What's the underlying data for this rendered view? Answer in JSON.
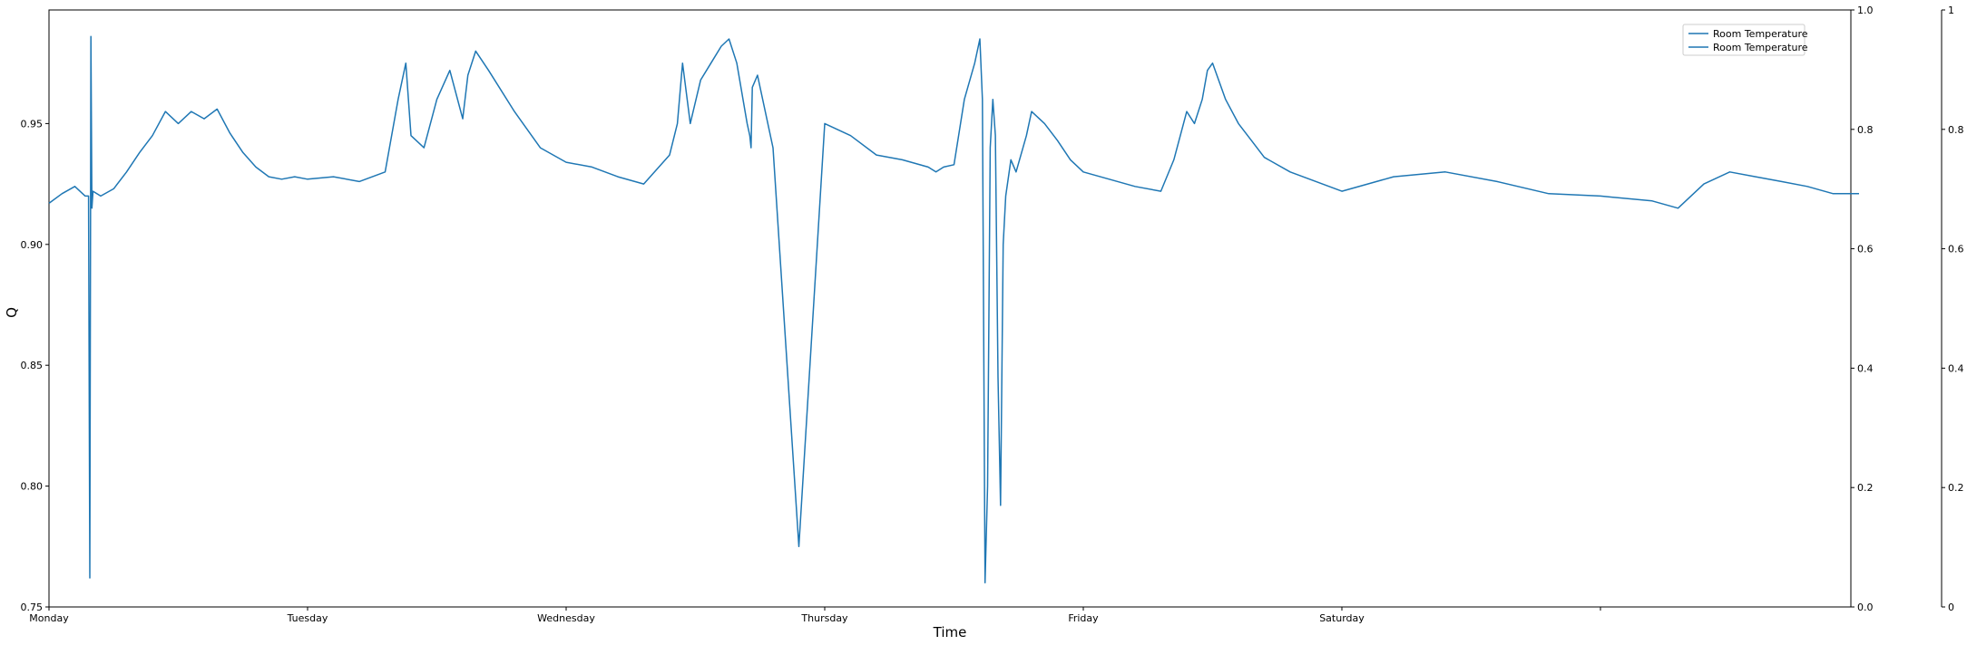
{
  "chart_data": {
    "type": "line",
    "title": "",
    "xlabel": "Time",
    "ylabel": "Q",
    "x_ticks": [
      "Monday",
      "Tuesday",
      "Wednesday",
      "Thursday",
      "Friday",
      "Saturday",
      ""
    ],
    "x_tick_positions_days": [
      0,
      1,
      2,
      3,
      4,
      5,
      6
    ],
    "xlim_days": [
      0,
      7.0
    ],
    "ylim": [
      0.75,
      0.997
    ],
    "y_ticks": [
      "0.75",
      "0.80",
      "0.85",
      "0.90",
      "0.95"
    ],
    "y_tick_values": [
      0.75,
      0.8,
      0.85,
      0.9,
      0.95
    ],
    "twin_axis_1": {
      "ylim": [
        0,
        1
      ],
      "ticks": [
        "0.0",
        "0.2",
        "0.4",
        "0.6",
        "0.8",
        "1.0"
      ]
    },
    "twin_axis_2": {
      "ylim": [
        0,
        1
      ],
      "ticks": [
        "0",
        "0.2",
        "0.4",
        "0.6",
        "0.8",
        "1"
      ]
    },
    "grid": false,
    "legend_placement": "upper-right",
    "legend": [
      "Room Temperature",
      "Room Temperature"
    ],
    "series_color": "#1f77b4",
    "series": [
      {
        "name": "Room Temperature",
        "x_days": [
          0,
          0.05,
          0.1,
          0.14,
          0.153,
          0.158,
          0.162,
          0.166,
          0.17,
          0.2,
          0.25,
          0.3,
          0.35,
          0.4,
          0.45,
          0.5,
          0.55,
          0.6,
          0.65,
          0.7,
          0.75,
          0.8,
          0.85,
          0.9,
          0.95,
          1.0,
          1.1,
          1.2,
          1.3,
          1.35,
          1.38,
          1.4,
          1.45,
          1.5,
          1.55,
          1.6,
          1.62,
          1.65,
          1.7,
          1.8,
          1.9,
          2.0,
          2.1,
          2.2,
          2.3,
          2.4,
          2.43,
          2.45,
          2.48,
          2.52,
          2.56,
          2.6,
          2.63,
          2.66,
          2.7,
          2.71,
          2.715,
          2.72,
          2.74,
          2.8,
          2.9,
          3.0,
          3.1,
          3.2,
          3.3,
          3.4,
          3.43,
          3.46,
          3.5,
          3.54,
          3.58,
          3.6,
          3.61,
          3.62,
          3.63,
          3.64,
          3.65,
          3.66,
          3.67,
          3.68,
          3.69,
          3.7,
          3.72,
          3.74,
          3.78,
          3.8,
          3.85,
          3.9,
          3.95,
          4.0,
          4.1,
          4.2,
          4.3,
          4.35,
          4.4,
          4.43,
          4.46,
          4.48,
          4.5,
          4.55,
          4.6,
          4.65,
          4.7,
          4.8,
          4.9,
          5.0,
          5.2,
          5.4,
          5.6,
          5.8,
          6.0,
          6.2,
          6.3,
          6.4,
          6.5,
          6.6,
          6.7,
          6.8,
          6.9,
          7.0
        ],
        "values": [
          0.917,
          0.921,
          0.924,
          0.92,
          0.92,
          0.762,
          0.986,
          0.915,
          0.922,
          0.92,
          0.923,
          0.93,
          0.938,
          0.945,
          0.955,
          0.95,
          0.955,
          0.952,
          0.956,
          0.946,
          0.938,
          0.932,
          0.928,
          0.927,
          0.928,
          0.927,
          0.928,
          0.926,
          0.93,
          0.96,
          0.975,
          0.945,
          0.94,
          0.96,
          0.972,
          0.952,
          0.97,
          0.98,
          0.972,
          0.955,
          0.94,
          0.934,
          0.932,
          0.928,
          0.925,
          0.937,
          0.95,
          0.975,
          0.95,
          0.968,
          0.975,
          0.982,
          0.985,
          0.975,
          0.95,
          0.945,
          0.94,
          0.965,
          0.97,
          0.94,
          0.775,
          0.95,
          0.945,
          0.937,
          0.935,
          0.932,
          0.93,
          0.932,
          0.933,
          0.96,
          0.975,
          0.985,
          0.96,
          0.76,
          0.8,
          0.94,
          0.96,
          0.945,
          0.845,
          0.792,
          0.9,
          0.92,
          0.935,
          0.93,
          0.945,
          0.955,
          0.95,
          0.943,
          0.935,
          0.93,
          0.927,
          0.924,
          0.922,
          0.935,
          0.955,
          0.95,
          0.96,
          0.972,
          0.975,
          0.96,
          0.95,
          0.943,
          0.936,
          0.93,
          0.926,
          0.922,
          0.928,
          0.93,
          0.926,
          0.921,
          0.92,
          0.918,
          0.915,
          0.925,
          0.93,
          0.928,
          0.926,
          0.924,
          0.921,
          0.921
        ]
      }
    ]
  }
}
